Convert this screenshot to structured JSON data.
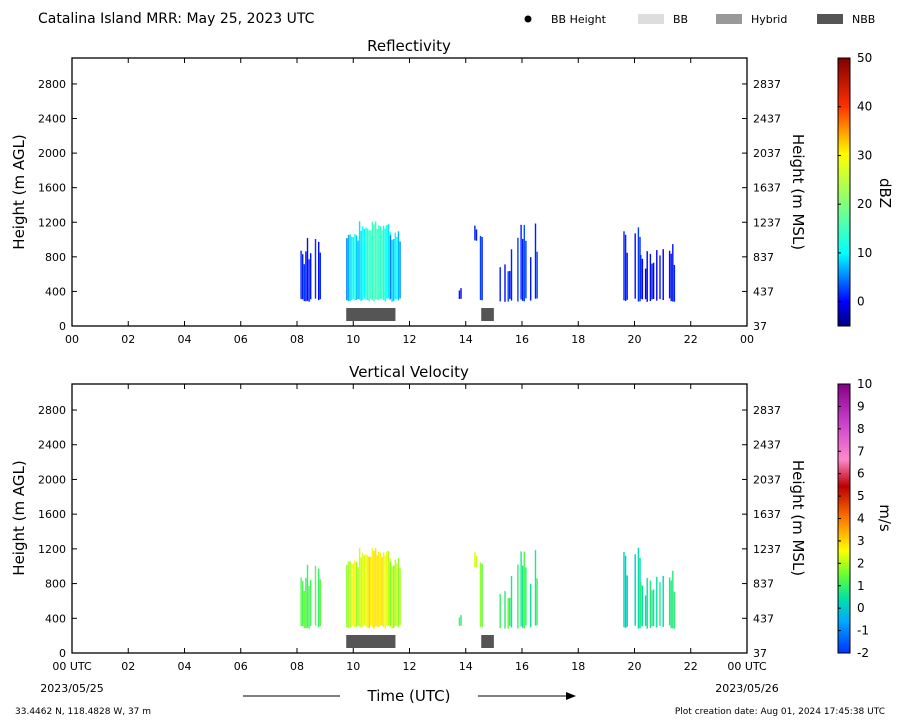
{
  "header": {
    "title": "Catalina Island MRR:  May 25, 2023 UTC",
    "legend": [
      {
        "label": "BB Height",
        "marker": "dot",
        "color": "#000000"
      },
      {
        "label": "BB",
        "marker": "box",
        "color": "#dddddd"
      },
      {
        "label": "Hybrid",
        "marker": "box",
        "color": "#999999"
      },
      {
        "label": "NBB",
        "marker": "box",
        "color": "#555555"
      }
    ]
  },
  "footer": {
    "location": "33.4462 N, 118.4828 W, 37 m",
    "created": "Plot creation date: Aug 01, 2024 17:45:38 UTC",
    "xlabel": "Time (UTC)",
    "start_date": "2023/05/25",
    "end_date": "2023/05/26"
  },
  "chart_data": [
    {
      "type": "heatmap",
      "title": "Reflectivity",
      "xlabel": "Time (UTC)",
      "ylabel": "Height (m AGL)",
      "ylabel_right": "Height (m MSL)",
      "x_ticks": [
        "00",
        "02",
        "04",
        "06",
        "08",
        "10",
        "12",
        "14",
        "16",
        "18",
        "20",
        "22",
        "00"
      ],
      "xlim": [
        0,
        24
      ],
      "y_ticks": [
        0,
        400,
        800,
        1200,
        1600,
        2000,
        2400,
        2800
      ],
      "y_ticks_right": [
        "37",
        "437",
        "837",
        "1237",
        "1637",
        "2037",
        "2437",
        "2837"
      ],
      "ylim": [
        0,
        3100
      ],
      "colorbar": {
        "label": "dBZ",
        "min": -5,
        "max": 50,
        "ticks": [
          0,
          10,
          20,
          30,
          40,
          50
        ]
      },
      "echo_segments": [
        {
          "x0": 7.95,
          "x1": 8.85,
          "y0": 280,
          "y1": 1050,
          "value": 1,
          "dense": false
        },
        {
          "x0": 9.75,
          "x1": 10.2,
          "y0": 280,
          "y1": 1100,
          "value": 5,
          "dense": true
        },
        {
          "x0": 10.2,
          "x1": 11.3,
          "y0": 280,
          "y1": 1220,
          "value": 9,
          "dense": true
        },
        {
          "x0": 11.3,
          "x1": 11.65,
          "y0": 280,
          "y1": 1100,
          "value": 4,
          "dense": true
        },
        {
          "x0": 13.75,
          "x1": 13.85,
          "y0": 280,
          "y1": 480,
          "value": 1,
          "dense": false
        },
        {
          "x0": 14.3,
          "x1": 14.4,
          "y0": 980,
          "y1": 1200,
          "value": 1,
          "dense": false
        },
        {
          "x0": 14.5,
          "x1": 14.7,
          "y0": 280,
          "y1": 1300,
          "value": 2,
          "dense": false
        },
        {
          "x0": 15.2,
          "x1": 15.6,
          "y0": 280,
          "y1": 880,
          "value": 1,
          "dense": false
        },
        {
          "x0": 15.6,
          "x1": 16.55,
          "y0": 280,
          "y1": 1200,
          "value": 2,
          "dense": false
        },
        {
          "x0": 19.6,
          "x1": 20.2,
          "y0": 280,
          "y1": 1220,
          "value": 1,
          "dense": false
        },
        {
          "x0": 20.2,
          "x1": 21.4,
          "y0": 280,
          "y1": 950,
          "value": 0,
          "dense": false
        }
      ],
      "bright_band_bars": [
        {
          "type": "NBB",
          "x0": 9.75,
          "x1": 11.5
        },
        {
          "type": "NBB",
          "x0": 14.55,
          "x1": 15.0
        }
      ]
    },
    {
      "type": "heatmap",
      "title": "Vertical Velocity",
      "xlabel": "Time (UTC)",
      "ylabel": "Height (m AGL)",
      "ylabel_right": "Height (m MSL)",
      "x_ticks": [
        "00 UTC",
        "02",
        "04",
        "06",
        "08",
        "10",
        "12",
        "14",
        "16",
        "18",
        "20",
        "22",
        "00 UTC"
      ],
      "xlim": [
        0,
        24
      ],
      "y_ticks": [
        0,
        400,
        800,
        1200,
        1600,
        2000,
        2400,
        2800
      ],
      "y_ticks_right": [
        "37",
        "437",
        "837",
        "1237",
        "1637",
        "2037",
        "2437",
        "2837"
      ],
      "ylim": [
        0,
        3100
      ],
      "colorbar": {
        "label": "m/s",
        "min": -2,
        "max": 10,
        "ticks": [
          -2,
          -1,
          0,
          1,
          2,
          3,
          4,
          5,
          6,
          7,
          8,
          9,
          10
        ]
      },
      "echo_segments": [
        {
          "x0": 7.95,
          "x1": 8.85,
          "y0": 280,
          "y1": 1050,
          "value": 1.2,
          "dense": false
        },
        {
          "x0": 9.75,
          "x1": 10.2,
          "y0": 280,
          "y1": 1100,
          "value": 1.8,
          "dense": true
        },
        {
          "x0": 10.2,
          "x1": 11.3,
          "y0": 280,
          "y1": 1220,
          "value": 2.3,
          "dense": true
        },
        {
          "x0": 11.3,
          "x1": 11.65,
          "y0": 280,
          "y1": 1100,
          "value": 1.5,
          "dense": true
        },
        {
          "x0": 13.75,
          "x1": 13.85,
          "y0": 280,
          "y1": 480,
          "value": 1.2,
          "dense": false
        },
        {
          "x0": 14.3,
          "x1": 14.4,
          "y0": 980,
          "y1": 1200,
          "value": 2.2,
          "dense": false
        },
        {
          "x0": 14.5,
          "x1": 14.7,
          "y0": 280,
          "y1": 1300,
          "value": 1.6,
          "dense": false
        },
        {
          "x0": 15.2,
          "x1": 15.6,
          "y0": 280,
          "y1": 880,
          "value": 1.0,
          "dense": false
        },
        {
          "x0": 15.6,
          "x1": 16.55,
          "y0": 280,
          "y1": 1200,
          "value": 0.9,
          "dense": false
        },
        {
          "x0": 19.6,
          "x1": 20.2,
          "y0": 280,
          "y1": 1300,
          "value": 0.1,
          "dense": false
        },
        {
          "x0": 20.2,
          "x1": 21.4,
          "y0": 280,
          "y1": 950,
          "value": 0.6,
          "dense": false
        }
      ],
      "bright_band_bars": [
        {
          "type": "NBB",
          "x0": 9.75,
          "x1": 11.5
        },
        {
          "type": "NBB",
          "x0": 14.55,
          "x1": 15.0
        }
      ]
    }
  ]
}
